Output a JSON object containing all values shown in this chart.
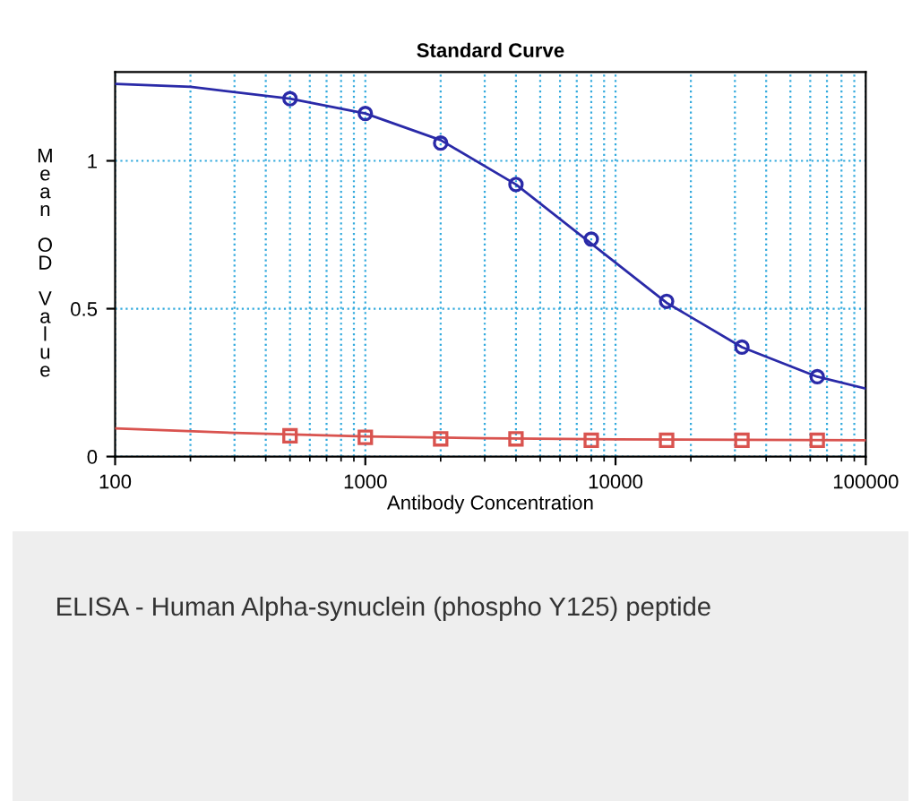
{
  "chart_data": {
    "type": "scatter",
    "title": "Standard Curve",
    "xlabel": "Antibody Concentration",
    "ylabel": "Mean OD Value",
    "log": "x",
    "xlim": [
      100,
      100000
    ],
    "xticks": [
      100,
      1000,
      10000,
      100000
    ],
    "ylim": [
      0,
      1.3
    ],
    "yticks": [
      0,
      0.5,
      1
    ],
    "grid": true,
    "series": [
      {
        "type": "line",
        "color": "#2a2aa8",
        "marker": "none",
        "x": [
          100,
          200,
          500,
          1000,
          2000,
          4000,
          8000,
          16000,
          32000,
          64000,
          100000
        ],
        "values": [
          1.26,
          1.25,
          1.21,
          1.16,
          1.07,
          0.92,
          0.72,
          0.52,
          0.37,
          0.27,
          0.23
        ]
      },
      {
        "color": "#2a2aa8",
        "marker": "circle",
        "x": [
          500,
          1000,
          2000,
          4000,
          8000,
          16000,
          32000,
          64000
        ],
        "values": [
          1.21,
          1.16,
          1.06,
          0.92,
          0.735,
          0.525,
          0.37,
          0.27
        ]
      },
      {
        "type": "line",
        "color": "#d9534f",
        "marker": "none",
        "x": [
          100,
          300,
          1000,
          3000,
          10000,
          100000
        ],
        "values": [
          0.095,
          0.08,
          0.068,
          0.062,
          0.058,
          0.055
        ]
      },
      {
        "color": "#d9534f",
        "marker": "square",
        "x": [
          500,
          1000,
          2000,
          4000,
          8000,
          16000,
          32000,
          64000
        ],
        "values": [
          0.07,
          0.065,
          0.06,
          0.06,
          0.055,
          0.055,
          0.055,
          0.055
        ]
      }
    ],
    "annotations": [
      "ELISA - Human Alpha-synuclein (phospho Y125) peptide"
    ]
  }
}
